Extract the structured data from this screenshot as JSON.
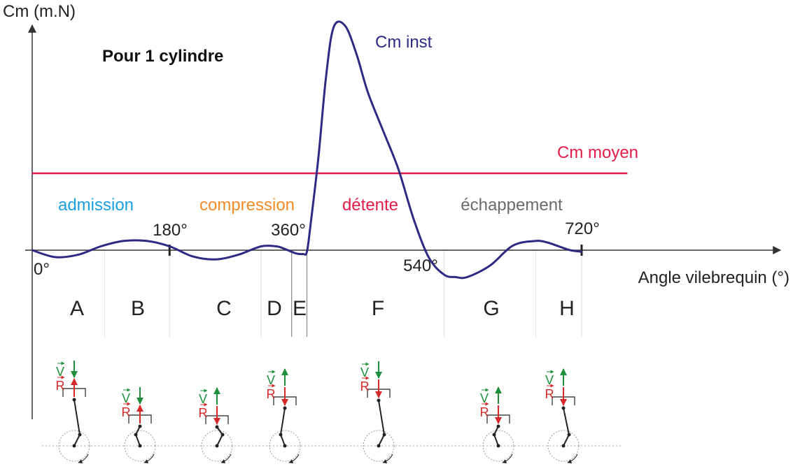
{
  "chart_data": {
    "type": "line",
    "title": "Pour 1 cylindre",
    "ylabel": "Cm (m.N)",
    "xlabel": "Angle vilebrequin (°)",
    "xlim": [
      0,
      720
    ],
    "x_ticks": [
      {
        "value": 0,
        "label": "0°"
      },
      {
        "value": 180,
        "label": "180°"
      },
      {
        "value": 360,
        "label": "360°"
      },
      {
        "value": 540,
        "label": "540°"
      },
      {
        "value": 720,
        "label": "720°"
      }
    ],
    "series": [
      {
        "name": "Cm inst",
        "color": "#2e2a83",
        "x": [
          0,
          30,
          60,
          90,
          120,
          150,
          180,
          210,
          240,
          270,
          300,
          320,
          330,
          345,
          355,
          360,
          365,
          375,
          385,
          395,
          410,
          425,
          440,
          460,
          480,
          500,
          520,
          540,
          555,
          570,
          600,
          630,
          660,
          675,
          690,
          705,
          720
        ],
        "y": [
          0,
          -0.09,
          -0.06,
          0.05,
          0.12,
          0.12,
          0.05,
          -0.08,
          -0.12,
          -0.06,
          0.05,
          0.05,
          0.02,
          -0.04,
          -0.05,
          -0.02,
          0.35,
          1.2,
          2.25,
          2.9,
          2.92,
          2.55,
          2.05,
          1.55,
          1.05,
          0.4,
          -0.1,
          -0.32,
          -0.35,
          -0.35,
          -0.2,
          0.06,
          0.12,
          0.1,
          0.05,
          0.0,
          -0.02
        ]
      },
      {
        "name": "Cm moyen",
        "color": "#e11d48",
        "x": [
          0,
          780
        ],
        "y": [
          1.0,
          1.0
        ]
      }
    ],
    "phases": [
      {
        "label": "admission",
        "color": "#1a9fe0",
        "start": 0,
        "end": 180
      },
      {
        "label": "compression",
        "color": "#f28c28",
        "start": 180,
        "end": 360
      },
      {
        "label": "détente",
        "color": "#e11d48",
        "start": 360,
        "end": 540
      },
      {
        "label": "échappement",
        "color": "#6b6b6b",
        "start": 540,
        "end": 720
      }
    ],
    "zones": [
      "A",
      "B",
      "C",
      "D",
      "E",
      "F",
      "G",
      "H"
    ],
    "zone_boundaries": [
      95,
      180,
      300,
      340,
      360,
      540,
      660,
      720
    ],
    "annotations": [
      {
        "label": "Cm inst",
        "series": "Cm inst"
      },
      {
        "label": "Cm moyen",
        "series": "Cm moyen"
      }
    ],
    "mechanism": {
      "velocity_label": "V",
      "reaction_label": "R",
      "diagrams": [
        {
          "zone": "A",
          "v": "down",
          "r": "up"
        },
        {
          "zone": "B",
          "v": "down",
          "r": "up"
        },
        {
          "zone": "C",
          "v": "up",
          "r": "down"
        },
        {
          "zone": "D",
          "v": "up",
          "r": "down"
        },
        {
          "zone": "F",
          "v": "down",
          "r": "down"
        },
        {
          "zone": "G",
          "v": "up",
          "r": "down"
        },
        {
          "zone": "H",
          "v": "up",
          "r": "down"
        }
      ]
    },
    "colors": {
      "axis": "#333333",
      "curve": "#2e2a83",
      "mean": "#e11d48",
      "velocity": "#1e8f3a",
      "reaction": "#d62828"
    }
  }
}
